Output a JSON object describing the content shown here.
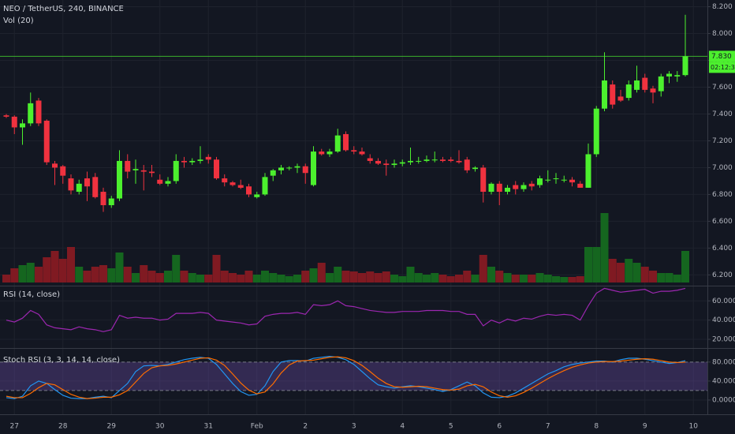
{
  "chart_data": [
    {
      "type": "candlestick",
      "title": "NEO / TetherUS, 240, BINANCE",
      "subtitle": "Vol (20)",
      "x_labels": [
        "27",
        "28",
        "29",
        "30",
        "31",
        "Feb",
        "2",
        "3",
        "4",
        "5",
        "6",
        "7",
        "8",
        "9",
        "10"
      ],
      "open": [
        7.39,
        7.38,
        7.3,
        7.33,
        7.5,
        7.35,
        7.03,
        7.01,
        6.92,
        6.82,
        6.92,
        6.93,
        6.82,
        6.72,
        6.77,
        7.05,
        6.98,
        6.98,
        6.97,
        6.91,
        6.88,
        6.9,
        7.05,
        7.04,
        7.05,
        7.08,
        7.06,
        6.92,
        6.89,
        6.87,
        6.86,
        6.78,
        6.8,
        6.94,
        6.98,
        7.0,
        7.0,
        7.01,
        6.87,
        7.12,
        7.1,
        7.12,
        7.25,
        7.13,
        7.12,
        7.07,
        7.05,
        7.03,
        7.02,
        7.03,
        7.04,
        7.05,
        7.05,
        7.06,
        7.06,
        7.06,
        7.05,
        7.06,
        6.99,
        7.0,
        6.82,
        6.88,
        6.82,
        6.87,
        6.84,
        6.88,
        6.87,
        6.91,
        6.92,
        6.91,
        6.91,
        6.88,
        6.85,
        7.1,
        7.44,
        7.62,
        7.53,
        7.52,
        7.58,
        7.67,
        7.59,
        7.57,
        7.68,
        7.68,
        7.69
      ],
      "high": [
        7.4,
        7.39,
        7.36,
        7.56,
        7.52,
        7.36,
        7.05,
        7.02,
        6.95,
        6.91,
        6.97,
        6.96,
        6.85,
        6.79,
        7.13,
        7.1,
        7.06,
        7.02,
        7.02,
        6.95,
        6.93,
        7.1,
        7.08,
        7.07,
        7.16,
        7.1,
        7.08,
        6.95,
        6.9,
        6.91,
        6.88,
        6.82,
        6.96,
        6.99,
        7.02,
        7.01,
        7.03,
        7.03,
        7.16,
        7.14,
        7.14,
        7.29,
        7.27,
        7.16,
        7.15,
        7.1,
        7.07,
        7.06,
        7.06,
        7.06,
        7.15,
        7.08,
        7.09,
        7.12,
        7.08,
        7.08,
        7.13,
        7.08,
        7.01,
        7.02,
        6.89,
        6.9,
        6.87,
        6.9,
        6.89,
        6.9,
        6.94,
        6.98,
        6.96,
        6.94,
        6.93,
        6.9,
        7.18,
        7.46,
        7.86,
        7.65,
        7.58,
        7.65,
        7.76,
        7.7,
        7.61,
        7.7,
        7.72,
        7.72,
        8.14
      ],
      "low": [
        7.37,
        7.25,
        7.17,
        7.31,
        7.31,
        7.02,
        6.87,
        6.88,
        6.8,
        6.8,
        6.75,
        6.77,
        6.67,
        6.7,
        6.75,
        6.92,
        6.88,
        6.83,
        6.93,
        6.87,
        6.86,
        6.88,
        7.0,
        7.02,
        7.03,
        7.03,
        6.91,
        6.86,
        6.86,
        6.84,
        6.78,
        6.77,
        6.79,
        6.9,
        6.95,
        6.98,
        6.96,
        6.88,
        6.86,
        7.09,
        7.08,
        7.11,
        7.12,
        7.1,
        7.09,
        7.03,
        7.02,
        6.94,
        7.0,
        7.01,
        7.02,
        7.03,
        7.04,
        7.04,
        7.04,
        7.04,
        7.03,
        6.96,
        6.97,
        6.74,
        6.8,
        6.72,
        6.8,
        6.8,
        6.82,
        6.83,
        6.85,
        6.89,
        6.88,
        6.89,
        6.86,
        6.85,
        6.85,
        7.08,
        7.42,
        7.44,
        7.49,
        7.5,
        7.56,
        7.56,
        7.48,
        7.53,
        7.63,
        7.64,
        7.68
      ],
      "close": [
        7.38,
        7.3,
        7.33,
        7.48,
        7.33,
        7.04,
        7.0,
        6.94,
        6.83,
        6.88,
        6.86,
        6.78,
        6.72,
        6.77,
        7.05,
        6.97,
        6.99,
        6.97,
        6.96,
        6.88,
        6.9,
        7.05,
        7.04,
        7.05,
        7.06,
        7.06,
        6.92,
        6.89,
        6.87,
        6.85,
        6.8,
        6.8,
        6.93,
        6.98,
        7.0,
        7.0,
        7.01,
        6.96,
        7.12,
        7.1,
        7.12,
        7.24,
        7.13,
        7.12,
        7.1,
        7.05,
        7.03,
        7.02,
        7.03,
        7.04,
        7.05,
        7.05,
        7.06,
        7.06,
        7.05,
        7.05,
        7.04,
        6.98,
        7.0,
        6.82,
        6.88,
        6.82,
        6.85,
        6.84,
        6.87,
        6.86,
        6.92,
        6.91,
        6.92,
        6.91,
        6.89,
        6.85,
        7.1,
        7.44,
        7.65,
        7.47,
        7.5,
        7.62,
        7.65,
        7.58,
        7.56,
        7.68,
        7.7,
        7.69,
        7.83
      ],
      "volume": [
        10,
        18,
        22,
        25,
        20,
        32,
        40,
        30,
        45,
        20,
        15,
        20,
        22,
        18,
        38,
        20,
        12,
        22,
        15,
        12,
        15,
        35,
        15,
        12,
        10,
        10,
        35,
        15,
        12,
        10,
        15,
        10,
        15,
        12,
        10,
        8,
        10,
        15,
        18,
        25,
        12,
        20,
        15,
        14,
        12,
        14,
        12,
        14,
        10,
        8,
        20,
        12,
        10,
        12,
        10,
        8,
        10,
        15,
        10,
        35,
        20,
        15,
        12,
        10,
        10,
        10,
        12,
        10,
        8,
        7,
        7,
        8,
        45,
        45,
        88,
        30,
        25,
        30,
        25,
        20,
        15,
        12,
        12,
        10,
        40
      ],
      "up_color": "#4cf02e",
      "down_color": "#f0323f",
      "volume_up_color": "#15661f",
      "volume_down_color": "#801a22",
      "ylim": [
        6.12,
        8.25
      ],
      "yticks": [
        {
          "value": 6.2,
          "label": "6.200"
        },
        {
          "value": 6.4,
          "label": "6.400"
        },
        {
          "value": 6.6,
          "label": "6.600"
        },
        {
          "value": 6.8,
          "label": "6.800"
        },
        {
          "value": 7.0,
          "label": "7.000"
        },
        {
          "value": 7.2,
          "label": "7.200"
        },
        {
          "value": 7.4,
          "label": "7.400"
        },
        {
          "value": 7.6,
          "label": "7.600"
        },
        {
          "value": 7.8,
          "label": "7.800"
        },
        {
          "value": 8.0,
          "label": "8.000"
        },
        {
          "value": 8.2,
          "label": "8.200"
        }
      ],
      "last_price": {
        "value": 7.83,
        "label": "7.830"
      },
      "countdown": "02:12:31",
      "grid": true
    },
    {
      "type": "line",
      "title": "RSI (14, close)",
      "color": "#9c27b0",
      "values": [
        40,
        38,
        42,
        50,
        46,
        35,
        32,
        31,
        30,
        33,
        31,
        30,
        28,
        30,
        45,
        42,
        43,
        42,
        42,
        40,
        41,
        47,
        47,
        47,
        48,
        47,
        40,
        39,
        38,
        37,
        35,
        36,
        44,
        46,
        47,
        47,
        48,
        46,
        56,
        55,
        56,
        60,
        55,
        54,
        52,
        50,
        49,
        48,
        48,
        49,
        49,
        49,
        50,
        50,
        50,
        49,
        49,
        46,
        46,
        34,
        40,
        37,
        41,
        39,
        42,
        41,
        44,
        46,
        45,
        46,
        45,
        40,
        55,
        68,
        73,
        71,
        69,
        70,
        71,
        72,
        68,
        70,
        70,
        71,
        73
      ],
      "ylim": [
        11,
        75
      ],
      "yticks": [
        {
          "value": 20,
          "label": "20.0000"
        },
        {
          "value": 40,
          "label": "40.0000"
        },
        {
          "value": 60,
          "label": "60.0000"
        }
      ]
    },
    {
      "type": "line",
      "title": "Stoch RSI (3, 3, 14, 14, close)",
      "series": [
        {
          "color": "#2196f3",
          "values": [
            5,
            3,
            8,
            30,
            40,
            35,
            22,
            10,
            4,
            3,
            3,
            6,
            8,
            5,
            20,
            35,
            60,
            72,
            73,
            72,
            75,
            80,
            85,
            88,
            90,
            88,
            75,
            55,
            35,
            18,
            10,
            12,
            30,
            60,
            80,
            83,
            83,
            82,
            88,
            90,
            92,
            90,
            85,
            75,
            60,
            45,
            32,
            28,
            25,
            28,
            30,
            28,
            25,
            22,
            18,
            22,
            30,
            38,
            30,
            15,
            6,
            5,
            8,
            15,
            25,
            35,
            45,
            55,
            62,
            70,
            75,
            78,
            80,
            82,
            82,
            80,
            85,
            88,
            88,
            86,
            83,
            80,
            77,
            79,
            83
          ]
        },
        {
          "color": "#ff6d00",
          "values": [
            8,
            5,
            5,
            14,
            26,
            35,
            32,
            22,
            12,
            6,
            3,
            4,
            6,
            6,
            11,
            20,
            38,
            56,
            68,
            72,
            73,
            76,
            80,
            84,
            88,
            89,
            84,
            73,
            55,
            36,
            21,
            13,
            17,
            34,
            57,
            74,
            82,
            83,
            84,
            87,
            90,
            91,
            89,
            83,
            73,
            60,
            46,
            35,
            28,
            27,
            28,
            29,
            28,
            25,
            22,
            21,
            23,
            30,
            33,
            28,
            17,
            9,
            6,
            9,
            16,
            25,
            35,
            45,
            54,
            62,
            69,
            74,
            78,
            80,
            81,
            81,
            82,
            84,
            86,
            87,
            86,
            83,
            80,
            79,
            80
          ]
        }
      ],
      "band": [
        20,
        80
      ],
      "band_color": "#7e57c2",
      "ylim": [
        -30,
        108
      ],
      "yticks": [
        {
          "value": 0,
          "label": "0.0000"
        },
        {
          "value": 40,
          "label": "40.0000"
        },
        {
          "value": 80,
          "label": "80.0000"
        }
      ]
    }
  ]
}
